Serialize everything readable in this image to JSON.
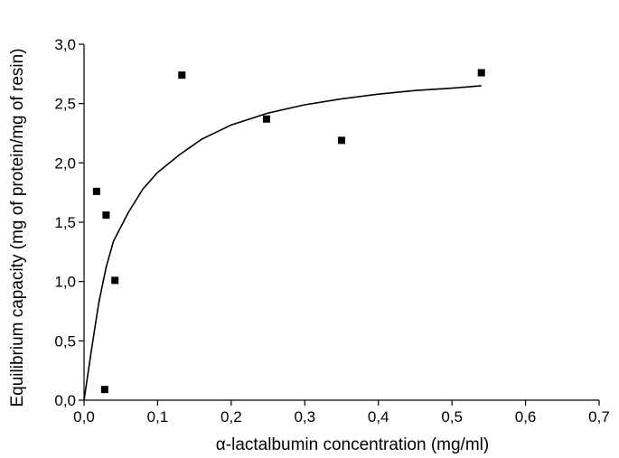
{
  "chart_data": {
    "type": "scatter",
    "xlabel": "α-lactalbumin concentration (mg/ml)",
    "ylabel": "Equilibrium capacity (mg of protein/mg of resin)",
    "xlim": [
      0,
      0.7
    ],
    "ylim": [
      0,
      3.0
    ],
    "x_ticks": [
      "0,0",
      "0,1",
      "0,2",
      "0,3",
      "0,4",
      "0,5",
      "0,6",
      "0,7"
    ],
    "y_ticks": [
      "0,0",
      "0,5",
      "1,0",
      "1,5",
      "2,0",
      "2,5",
      "3,0"
    ],
    "grid": false,
    "legend": "none",
    "series": [
      {
        "type": "scatter",
        "marker": "square",
        "points": [
          {
            "x": 0.017,
            "y": 1.76
          },
          {
            "x": 0.028,
            "y": 0.09
          },
          {
            "x": 0.03,
            "y": 1.56
          },
          {
            "x": 0.042,
            "y": 1.01
          },
          {
            "x": 0.133,
            "y": 2.74
          },
          {
            "x": 0.248,
            "y": 2.37
          },
          {
            "x": 0.35,
            "y": 2.19
          },
          {
            "x": 0.54,
            "y": 2.76
          }
        ]
      },
      {
        "type": "line",
        "points": [
          {
            "x": 0.0,
            "y": 0.0
          },
          {
            "x": 0.01,
            "y": 0.42
          },
          {
            "x": 0.02,
            "y": 0.82
          },
          {
            "x": 0.03,
            "y": 1.12
          },
          {
            "x": 0.04,
            "y": 1.34
          },
          {
            "x": 0.06,
            "y": 1.58
          },
          {
            "x": 0.08,
            "y": 1.78
          },
          {
            "x": 0.1,
            "y": 1.92
          },
          {
            "x": 0.13,
            "y": 2.07
          },
          {
            "x": 0.16,
            "y": 2.2
          },
          {
            "x": 0.2,
            "y": 2.32
          },
          {
            "x": 0.25,
            "y": 2.42
          },
          {
            "x": 0.3,
            "y": 2.49
          },
          {
            "x": 0.35,
            "y": 2.54
          },
          {
            "x": 0.4,
            "y": 2.58
          },
          {
            "x": 0.45,
            "y": 2.61
          },
          {
            "x": 0.5,
            "y": 2.63
          },
          {
            "x": 0.54,
            "y": 2.65
          }
        ]
      }
    ]
  }
}
